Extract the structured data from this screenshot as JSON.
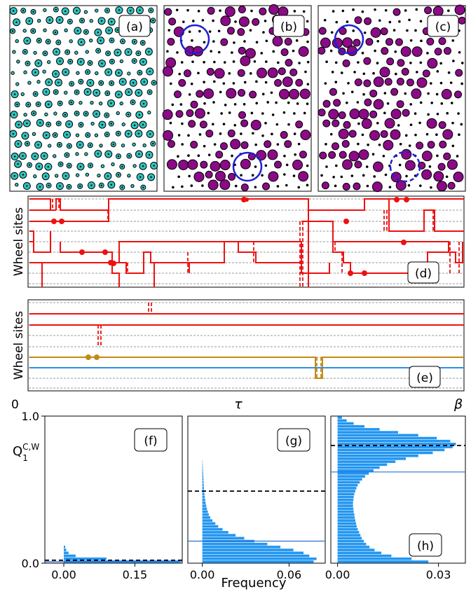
{
  "panel_labels": {
    "a": "(a)",
    "b": "(b)",
    "c": "(c)",
    "d": "(d)",
    "e": "(e)",
    "f": "(f)",
    "g": "(g)",
    "h": "(h)"
  },
  "colors": {
    "teal": "#2ec4c0",
    "purple": "#8b0a86",
    "circle": "#1f1fd6",
    "red": "#ee1111",
    "gold": "#c48a12",
    "blue_line": "#2f8ee6",
    "hist": "#2396f0"
  },
  "worldlines": {
    "ylabel": "Wheel sites",
    "x_start": "0",
    "x_mid": "τ",
    "x_end": "β"
  },
  "chart_data": [
    {
      "panel": "(f)",
      "type": "bar",
      "orientation": "horizontal",
      "ylabel": "Q",
      "ylabel_superscript": "C,W",
      "ylabel_subscript": "1",
      "xlabel": "",
      "ylim": [
        0.0,
        1.0
      ],
      "xlim": [
        -0.04,
        0.25
      ],
      "yticks": [
        "0.0",
        "1.0"
      ],
      "xticks": [
        "0.00",
        "0.15"
      ],
      "xtick_values": [
        0.0,
        0.15
      ],
      "dashed_line_y": 0.02,
      "solid_line_y": 0.01,
      "bins": [
        {
          "y": 0.0,
          "v": 0.245
        },
        {
          "y": 0.02,
          "v": 0.09
        },
        {
          "y": 0.04,
          "v": 0.025
        },
        {
          "y": 0.06,
          "v": 0.01
        },
        {
          "y": 0.08,
          "v": 0.005
        },
        {
          "y": 0.1,
          "v": 0.003
        }
      ]
    },
    {
      "panel": "(g)",
      "type": "bar",
      "orientation": "horizontal",
      "xlabel": "Frequency",
      "ylim": [
        0.0,
        1.0
      ],
      "xlim": [
        -0.01,
        0.085
      ],
      "xticks": [
        "0.00",
        "0.06"
      ],
      "xtick_values": [
        0.0,
        0.06
      ],
      "dashed_line_y": 0.49,
      "solid_line_y": 0.15,
      "bins": [
        {
          "y": 0.0,
          "v": 0.077
        },
        {
          "y": 0.02,
          "v": 0.079
        },
        {
          "y": 0.04,
          "v": 0.074
        },
        {
          "y": 0.06,
          "v": 0.07
        },
        {
          "y": 0.08,
          "v": 0.063
        },
        {
          "y": 0.1,
          "v": 0.054
        },
        {
          "y": 0.12,
          "v": 0.045
        },
        {
          "y": 0.14,
          "v": 0.036
        },
        {
          "y": 0.16,
          "v": 0.029
        },
        {
          "y": 0.18,
          "v": 0.023
        },
        {
          "y": 0.2,
          "v": 0.018
        },
        {
          "y": 0.22,
          "v": 0.014
        },
        {
          "y": 0.24,
          "v": 0.011
        },
        {
          "y": 0.26,
          "v": 0.009
        },
        {
          "y": 0.28,
          "v": 0.007
        },
        {
          "y": 0.3,
          "v": 0.0055
        },
        {
          "y": 0.32,
          "v": 0.0045
        },
        {
          "y": 0.34,
          "v": 0.0038
        },
        {
          "y": 0.36,
          "v": 0.0032
        },
        {
          "y": 0.38,
          "v": 0.0027
        },
        {
          "y": 0.4,
          "v": 0.0023
        },
        {
          "y": 0.42,
          "v": 0.002
        },
        {
          "y": 0.44,
          "v": 0.0017
        },
        {
          "y": 0.46,
          "v": 0.0015
        },
        {
          "y": 0.48,
          "v": 0.0013
        },
        {
          "y": 0.5,
          "v": 0.0011
        },
        {
          "y": 0.52,
          "v": 0.001
        },
        {
          "y": 0.54,
          "v": 0.0009
        },
        {
          "y": 0.56,
          "v": 0.0008
        },
        {
          "y": 0.58,
          "v": 0.0007
        },
        {
          "y": 0.6,
          "v": 0.0006
        },
        {
          "y": 0.62,
          "v": 0.0005
        },
        {
          "y": 0.64,
          "v": 0.0004
        },
        {
          "y": 0.66,
          "v": 0.0003
        },
        {
          "y": 0.68,
          "v": 0.0002
        }
      ]
    },
    {
      "panel": "(h)",
      "type": "bar",
      "orientation": "horizontal",
      "xlabel": "",
      "ylim": [
        0.0,
        1.0
      ],
      "xlim": [
        -0.002,
        0.038
      ],
      "xticks": [
        "0.00",
        "0.03"
      ],
      "xtick_values": [
        0.0,
        0.03
      ],
      "dashed_line_y": 0.8,
      "solid_line_y": 0.62,
      "bins": [
        {
          "y": 0.0,
          "v": 0.027
        },
        {
          "y": 0.02,
          "v": 0.022
        },
        {
          "y": 0.04,
          "v": 0.016
        },
        {
          "y": 0.06,
          "v": 0.013
        },
        {
          "y": 0.08,
          "v": 0.011
        },
        {
          "y": 0.1,
          "v": 0.0095
        },
        {
          "y": 0.12,
          "v": 0.0085
        },
        {
          "y": 0.14,
          "v": 0.0078
        },
        {
          "y": 0.16,
          "v": 0.0072
        },
        {
          "y": 0.18,
          "v": 0.0068
        },
        {
          "y": 0.2,
          "v": 0.0064
        },
        {
          "y": 0.22,
          "v": 0.006
        },
        {
          "y": 0.24,
          "v": 0.0057
        },
        {
          "y": 0.26,
          "v": 0.0055
        },
        {
          "y": 0.28,
          "v": 0.0053
        },
        {
          "y": 0.3,
          "v": 0.0051
        },
        {
          "y": 0.32,
          "v": 0.005
        },
        {
          "y": 0.34,
          "v": 0.0048
        },
        {
          "y": 0.36,
          "v": 0.0047
        },
        {
          "y": 0.38,
          "v": 0.0046
        },
        {
          "y": 0.4,
          "v": 0.0046
        },
        {
          "y": 0.42,
          "v": 0.0047
        },
        {
          "y": 0.44,
          "v": 0.0048
        },
        {
          "y": 0.46,
          "v": 0.005
        },
        {
          "y": 0.48,
          "v": 0.0053
        },
        {
          "y": 0.5,
          "v": 0.0056
        },
        {
          "y": 0.52,
          "v": 0.006
        },
        {
          "y": 0.54,
          "v": 0.0066
        },
        {
          "y": 0.56,
          "v": 0.0073
        },
        {
          "y": 0.58,
          "v": 0.0082
        },
        {
          "y": 0.6,
          "v": 0.0093
        },
        {
          "y": 0.62,
          "v": 0.0107
        },
        {
          "y": 0.64,
          "v": 0.0125
        },
        {
          "y": 0.66,
          "v": 0.0147
        },
        {
          "y": 0.68,
          "v": 0.0172
        },
        {
          "y": 0.7,
          "v": 0.0203
        },
        {
          "y": 0.72,
          "v": 0.024
        },
        {
          "y": 0.74,
          "v": 0.0283
        },
        {
          "y": 0.76,
          "v": 0.0318
        },
        {
          "y": 0.78,
          "v": 0.0342
        },
        {
          "y": 0.8,
          "v": 0.0352
        },
        {
          "y": 0.82,
          "v": 0.0335
        },
        {
          "y": 0.84,
          "v": 0.0295
        },
        {
          "y": 0.86,
          "v": 0.024
        },
        {
          "y": 0.88,
          "v": 0.018
        },
        {
          "y": 0.9,
          "v": 0.0125
        },
        {
          "y": 0.92,
          "v": 0.008
        },
        {
          "y": 0.94,
          "v": 0.0048
        },
        {
          "y": 0.96,
          "v": 0.0027
        },
        {
          "y": 0.98,
          "v": 0.0013
        }
      ]
    }
  ]
}
